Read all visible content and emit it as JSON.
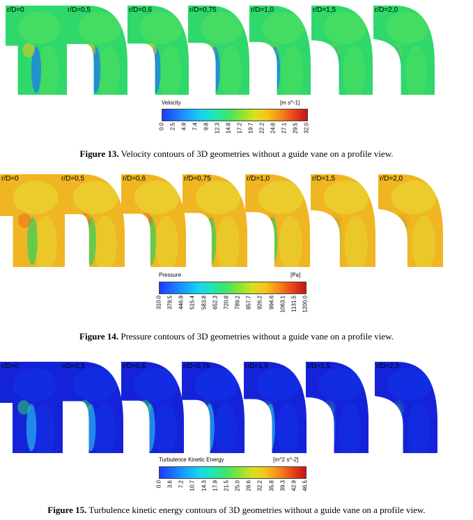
{
  "figures": [
    {
      "id": "velocity",
      "labels": [
        "r/D=0",
        "r/D=0,5",
        "r/D=0,6",
        "r/D=0,75",
        "r/D=1,0",
        "r/D=1,5",
        "r/D=2,0"
      ],
      "colorbar_title": "Velocity",
      "colorbar_unit": "[m s^-1]",
      "ticks": [
        "0.0",
        "2.5",
        "4.9",
        "7.4",
        "9.8",
        "12.3",
        "14.8",
        "17.2",
        "19.7",
        "22.2",
        "24.6",
        "27.1",
        "29.5",
        "32.0"
      ],
      "caption_bold": "Figure 13.",
      "caption_text": " Velocity contours of 3D geometries without a guide vane on a profile view."
    },
    {
      "id": "pressure",
      "labels": [
        "r/D=0",
        "r/D=0,5",
        "r/D=0,6",
        "r/D=0,75",
        "r/D=1,0",
        "r/D=1,5",
        "r/D=2,0"
      ],
      "colorbar_title": "Pressure",
      "colorbar_unit": "[Pa]",
      "ticks": [
        "310.0",
        "378.5",
        "446.9",
        "515.4",
        "583.8",
        "652.3",
        "720.8",
        "789.2",
        "857.7",
        "926.2",
        "994.6",
        "1063.1",
        "1131.5",
        "1200.0"
      ],
      "caption_bold": "Figure 14.",
      "caption_text": " Pressure contours of 3D geometries without a guide vane on a profile view."
    },
    {
      "id": "tke",
      "labels": [
        "r/D=0",
        "r/D=0,5",
        "r/D=0,6",
        "r/D=0,75",
        "r/D=1,0",
        "r/D=1,5",
        "r/D=2,0"
      ],
      "colorbar_title": "Turbulence Kinetic Energy",
      "colorbar_unit": "[m^2 s^-2]",
      "ticks": [
        "0.0",
        "3.6",
        "7.2",
        "10.7",
        "14.3",
        "17.9",
        "21.5",
        "25.0",
        "28.6",
        "32.2",
        "35.8",
        "39.3",
        "42.9",
        "46.5"
      ],
      "caption_bold": "Figure 15.",
      "caption_text": " Turbulence kinetic energy contours of 3D geometries without a guide vane on a profile view."
    }
  ]
}
